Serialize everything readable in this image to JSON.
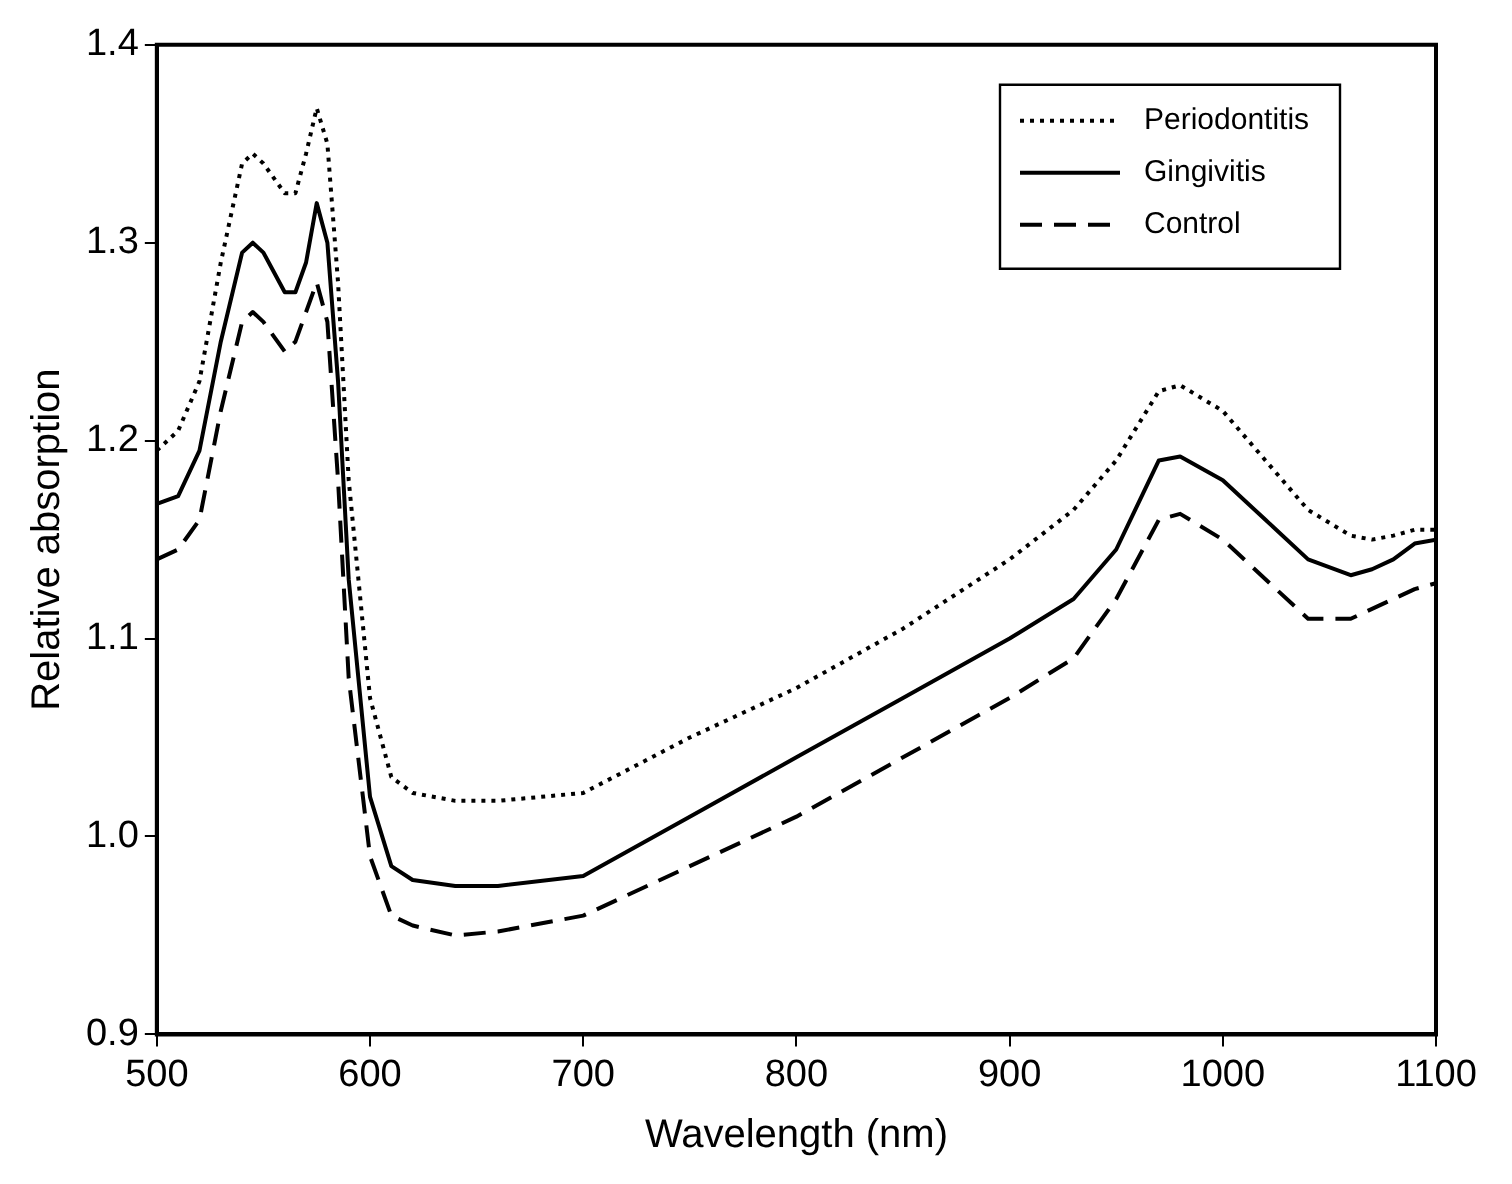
{
  "chart_data": {
    "type": "line",
    "xlabel": "Wavelength (nm)",
    "ylabel": "Relative absorption",
    "x": [
      500,
      510,
      520,
      530,
      540,
      545,
      550,
      560,
      565,
      570,
      575,
      580,
      585,
      590,
      600,
      610,
      620,
      640,
      660,
      700,
      750,
      800,
      850,
      900,
      930,
      950,
      970,
      980,
      1000,
      1020,
      1040,
      1060,
      1070,
      1080,
      1090,
      1100
    ],
    "series": [
      {
        "name": "Periodontitis",
        "color": "#000000",
        "line_style": "dotted",
        "values": [
          1.195,
          1.205,
          1.23,
          1.29,
          1.34,
          1.345,
          1.34,
          1.325,
          1.325,
          1.345,
          1.368,
          1.35,
          1.28,
          1.18,
          1.07,
          1.03,
          1.022,
          1.018,
          1.018,
          1.022,
          1.05,
          1.075,
          1.105,
          1.14,
          1.165,
          1.19,
          1.225,
          1.228,
          1.215,
          1.19,
          1.165,
          1.152,
          1.15,
          1.152,
          1.155,
          1.155
        ]
      },
      {
        "name": "Gingivitis",
        "color": "#000000",
        "line_style": "solid",
        "values": [
          1.168,
          1.172,
          1.195,
          1.25,
          1.295,
          1.3,
          1.295,
          1.275,
          1.275,
          1.29,
          1.32,
          1.3,
          1.23,
          1.13,
          1.02,
          0.985,
          0.978,
          0.975,
          0.975,
          0.98,
          1.01,
          1.04,
          1.07,
          1.1,
          1.12,
          1.145,
          1.19,
          1.192,
          1.18,
          1.16,
          1.14,
          1.132,
          1.135,
          1.14,
          1.148,
          1.15
        ]
      },
      {
        "name": "Control",
        "color": "#000000",
        "line_style": "dashed",
        "values": [
          1.14,
          1.145,
          1.16,
          1.215,
          1.26,
          1.265,
          1.26,
          1.245,
          1.25,
          1.265,
          1.28,
          1.26,
          1.18,
          1.08,
          0.99,
          0.96,
          0.955,
          0.95,
          0.952,
          0.96,
          0.985,
          1.01,
          1.04,
          1.07,
          1.09,
          1.12,
          1.16,
          1.163,
          1.15,
          1.13,
          1.11,
          1.11,
          1.115,
          1.12,
          1.125,
          1.128
        ]
      }
    ],
    "xlim": [
      500,
      1100
    ],
    "xticks": [
      500,
      600,
      700,
      800,
      900,
      1000,
      1100
    ],
    "ylim": [
      0.9,
      1.4
    ],
    "yticks": [
      0.9,
      {
        "value": 1.0,
        "label": "1.0"
      },
      1.1,
      1.2,
      1.3,
      1.4
    ],
    "grid": false,
    "legend": "top right",
    "marker": "none"
  }
}
